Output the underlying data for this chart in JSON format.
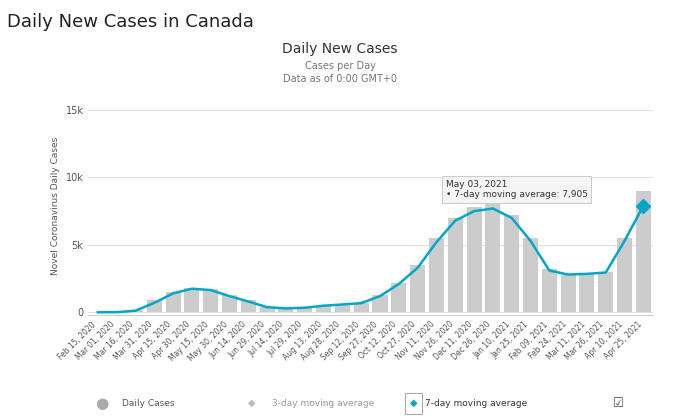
{
  "title_main": "Daily New Cases in Canada",
  "title_chart": "Daily New Cases",
  "subtitle1": "Cases per Day",
  "subtitle2": "Data as of 0:00 GMT+0",
  "ylabel": "Novel Coronavirus Daily Cases",
  "xlabel": "",
  "tooltip_date": "May 03, 2021",
  "tooltip_label": "7-day moving average:",
  "tooltip_value": "7,905",
  "yticks": [
    0,
    5000,
    10000,
    15000
  ],
  "ytick_labels": [
    "0",
    "5k",
    "10k",
    "15k"
  ],
  "bg_color": "#ffffff",
  "bar_color": "#cccccc",
  "line7_color": "#00a8c8",
  "grid_color": "#e0e0e0",
  "tooltip_bg": "#f5f5f5",
  "tooltip_border": "#cccccc",
  "x_dates": [
    "Feb 15, 2020",
    "Mar 01, 2020",
    "Mar 16, 2020",
    "Mar 31, 2020",
    "Apr 15, 2020",
    "Apr 30, 2020",
    "May 15, 2020",
    "May 30, 2020",
    "Jun 14, 2020",
    "Jun 29, 2020",
    "Jul 14, 2020",
    "Jul 29, 2020",
    "Aug 13, 2020",
    "Aug 28, 2020",
    "Sep 12, 2020",
    "Sep 27, 2020",
    "Oct 12, 2020",
    "Oct 27, 2020",
    "Nov 11, 2020",
    "Nov 26, 2020",
    "Dec 11, 2020",
    "Dec 26, 2020",
    "Jan 10, 2021",
    "Jan 25, 2021",
    "Feb 09, 2021",
    "Feb 24, 2021",
    "Mar 11, 2021",
    "Mar 26, 2021",
    "Apr 10, 2021",
    "Apr 25, 2021"
  ],
  "daily_cases": [
    0,
    10,
    150,
    900,
    1500,
    1800,
    1700,
    1300,
    900,
    400,
    300,
    350,
    500,
    600,
    700,
    1300,
    2200,
    3500,
    5500,
    7000,
    7800,
    8000,
    7200,
    5500,
    3200,
    2800,
    2900,
    3000,
    5500,
    9000
  ],
  "moving_avg_7": [
    0,
    8,
    120,
    700,
    1400,
    1750,
    1650,
    1200,
    800,
    380,
    290,
    340,
    490,
    580,
    680,
    1200,
    2100,
    3300,
    5200,
    6800,
    7500,
    7700,
    7000,
    5300,
    3100,
    2800,
    2850,
    2950,
    5300,
    7905
  ]
}
